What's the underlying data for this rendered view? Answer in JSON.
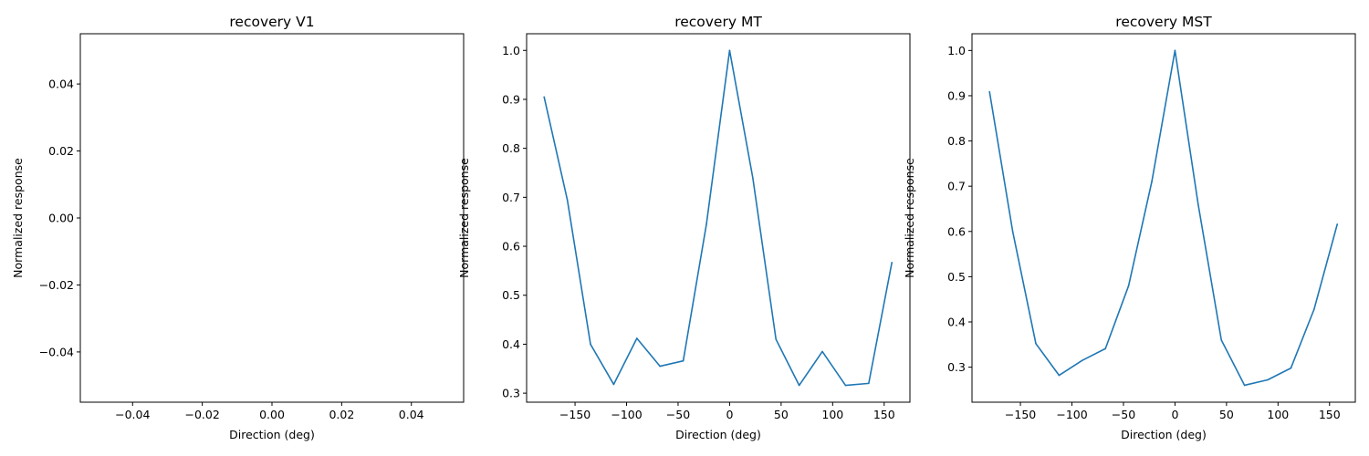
{
  "chart_data": [
    {
      "type": "line",
      "title": "recovery V1",
      "xlabel": "Direction (deg)",
      "ylabel": "Normalized response",
      "xlim": [
        -0.055,
        0.055
      ],
      "ylim": [
        -0.055,
        0.055
      ],
      "xticks": [
        -0.04,
        -0.02,
        0.0,
        0.02,
        0.04
      ],
      "xticklabels": [
        "−0.04",
        "−0.02",
        "0.00",
        "0.02",
        "0.04"
      ],
      "yticks": [
        -0.04,
        -0.02,
        0.0,
        0.02,
        0.04
      ],
      "yticklabels": [
        "−0.04",
        "−0.02",
        "0.00",
        "0.02",
        "0.04"
      ],
      "grid": false,
      "color": "#1f77b4",
      "series": [
        {
          "x": [],
          "y": []
        }
      ]
    },
    {
      "type": "line",
      "title": "recovery MT",
      "xlabel": "Direction (deg)",
      "ylabel": "Normalized response",
      "xlim": [
        -197,
        175
      ],
      "ylim": [
        0.2816,
        1.034
      ],
      "xticks": [
        -150,
        -100,
        -50,
        0,
        50,
        100,
        150
      ],
      "xticklabels": [
        "−150",
        "−100",
        "−50",
        "0",
        "50",
        "100",
        "150"
      ],
      "yticks": [
        0.3,
        0.4,
        0.5,
        0.6,
        0.7,
        0.8,
        0.9,
        1.0
      ],
      "yticklabels": [
        "0.3",
        "0.4",
        "0.5",
        "0.6",
        "0.7",
        "0.8",
        "0.9",
        "1.0"
      ],
      "grid": false,
      "color": "#1f77b4",
      "series": [
        {
          "x": [
            -180,
            -157.5,
            -135,
            -112.5,
            -90,
            -67.5,
            -45,
            -22.5,
            0,
            22.5,
            45,
            67.5,
            90,
            112.5,
            135,
            157.5
          ],
          "y": [
            0.905,
            0.695,
            0.4,
            0.318,
            0.412,
            0.355,
            0.366,
            0.645,
            1.0,
            0.74,
            0.41,
            0.316,
            0.385,
            0.316,
            0.32,
            0.567
          ]
        }
      ]
    },
    {
      "type": "line",
      "title": "recovery MST",
      "xlabel": "Direction (deg)",
      "ylabel": "Normalized response",
      "xlim": [
        -197,
        175
      ],
      "ylim": [
        0.2226,
        1.037
      ],
      "xticks": [
        -150,
        -100,
        -50,
        0,
        50,
        100,
        150
      ],
      "xticklabels": [
        "−150",
        "−100",
        "−50",
        "0",
        "50",
        "100",
        "150"
      ],
      "yticks": [
        0.3,
        0.4,
        0.5,
        0.6,
        0.7,
        0.8,
        0.9,
        1.0
      ],
      "yticklabels": [
        "0.3",
        "0.4",
        "0.5",
        "0.6",
        "0.7",
        "0.8",
        "0.9",
        "1.0"
      ],
      "grid": false,
      "color": "#1f77b4",
      "series": [
        {
          "x": [
            -180,
            -157.5,
            -135,
            -112.5,
            -90,
            -67.5,
            -45,
            -22.5,
            0,
            22.5,
            45,
            67.5,
            90,
            112.5,
            135,
            157.5
          ],
          "y": [
            0.909,
            0.6,
            0.352,
            0.282,
            0.315,
            0.341,
            0.48,
            0.71,
            1.0,
            0.66,
            0.36,
            0.26,
            0.272,
            0.298,
            0.428,
            0.616
          ]
        }
      ]
    }
  ]
}
